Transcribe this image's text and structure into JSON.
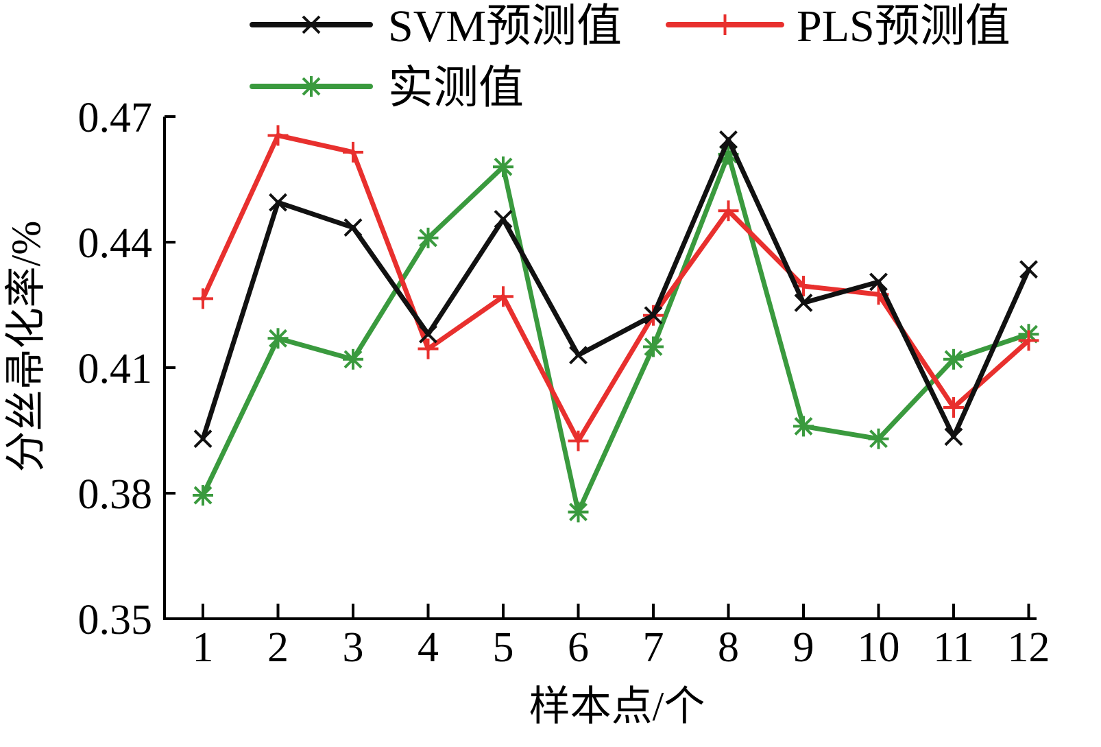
{
  "chart_data": {
    "type": "line",
    "xlabel": "样本点/个",
    "ylabel": "分丝帚化率/%",
    "ylim": [
      0.35,
      0.47
    ],
    "yticks": [
      0.35,
      0.38,
      0.41,
      0.44,
      0.47
    ],
    "ytick_labels": [
      "0.35",
      "0.38",
      "0.41",
      "0.44",
      "0.47"
    ],
    "x": [
      1,
      2,
      3,
      4,
      5,
      6,
      7,
      8,
      9,
      10,
      11,
      12
    ],
    "x_labels": [
      "1",
      "2",
      "3",
      "4",
      "5",
      "6",
      "7",
      "8",
      "9",
      "10",
      "11",
      "12"
    ],
    "grid": false,
    "legend_position": "top",
    "series": [
      {
        "name": "SVM预测值",
        "color": "#111111",
        "marker": "x",
        "values": [
          0.393,
          0.4495,
          0.4435,
          0.418,
          0.4455,
          0.413,
          0.4225,
          0.4645,
          0.4255,
          0.4305,
          0.3935,
          0.4335
        ]
      },
      {
        "name": "PLS预测值",
        "color": "#e8302e",
        "marker": "plus",
        "values": [
          0.4265,
          0.4655,
          0.4615,
          0.4145,
          0.427,
          0.3925,
          0.4225,
          0.4475,
          0.4295,
          0.4275,
          0.4005,
          0.4165
        ]
      },
      {
        "name": "实测值",
        "color": "#3a9a3e",
        "marker": "star",
        "values": [
          0.3795,
          0.417,
          0.412,
          0.441,
          0.458,
          0.3755,
          0.415,
          0.461,
          0.396,
          0.393,
          0.412,
          0.418
        ]
      }
    ]
  }
}
